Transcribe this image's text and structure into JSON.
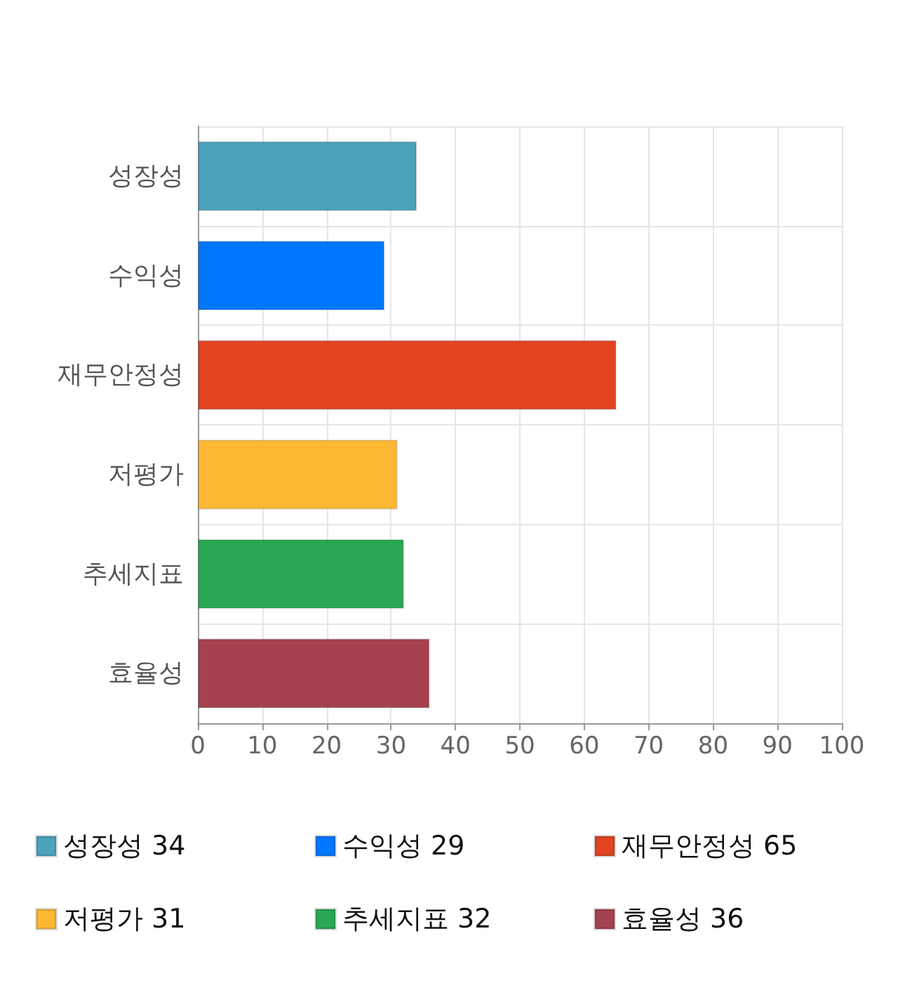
{
  "chart_data": {
    "type": "bar",
    "orientation": "horizontal",
    "categories": [
      "성장성",
      "수익성",
      "재무안정성",
      "저평가",
      "추세지표",
      "효율성"
    ],
    "series": [
      {
        "name": "성장성 34",
        "color": "#4aa3bb",
        "values": [
          34,
          null,
          null,
          null,
          null,
          null
        ]
      },
      {
        "name": "수익성 29",
        "color": "#0077ff",
        "values": [
          null,
          29,
          null,
          null,
          null,
          null
        ]
      },
      {
        "name": "재무안정성 65",
        "color": "#e24422",
        "values": [
          null,
          null,
          65,
          null,
          null,
          null
        ]
      },
      {
        "name": "저평가 31",
        "color": "#ffb833",
        "values": [
          null,
          null,
          null,
          31,
          null,
          null
        ]
      },
      {
        "name": "추세지표 32",
        "color": "#29a854",
        "values": [
          null,
          null,
          null,
          null,
          32,
          null
        ]
      },
      {
        "name": "효율성 36",
        "color": "#a6424f",
        "values": [
          null,
          null,
          null,
          null,
          null,
          36
        ]
      }
    ],
    "xlim": [
      0,
      100
    ],
    "xticks": [
      0,
      10,
      20,
      30,
      40,
      50,
      60,
      70,
      80,
      90,
      100
    ],
    "grid": true,
    "legend": "bottom"
  }
}
